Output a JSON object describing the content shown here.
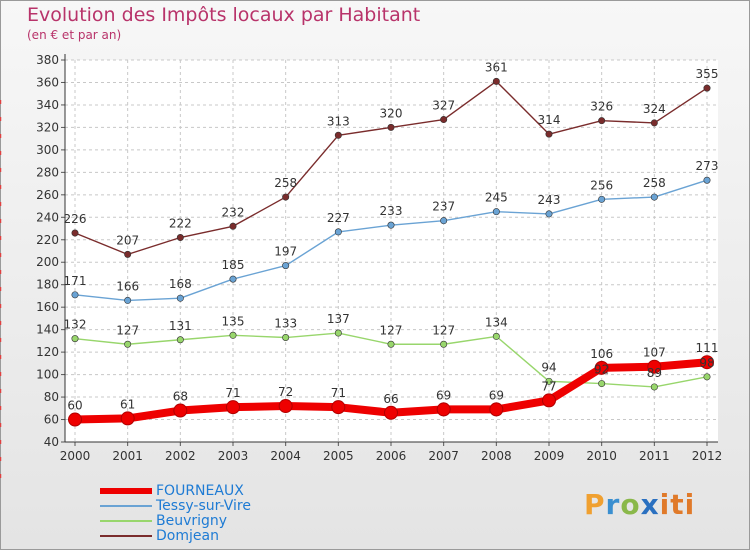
{
  "chart_data": {
    "type": "line",
    "title": "Evolution des Impôts locaux par Habitant",
    "subtitle": "(en € et par an)",
    "xlabel": "",
    "ylabel": "",
    "ylim": [
      40,
      380
    ],
    "yticks": [
      40,
      60,
      80,
      100,
      120,
      140,
      160,
      180,
      200,
      220,
      240,
      260,
      280,
      300,
      320,
      340,
      360,
      380
    ],
    "categories": [
      "2000",
      "2001",
      "2002",
      "2003",
      "2004",
      "2005",
      "2006",
      "2007",
      "2008",
      "2009",
      "2010",
      "2011",
      "2012"
    ],
    "series": [
      {
        "name": "FOURNEAUX",
        "color": "#ee0000",
        "values": [
          60,
          61,
          68,
          71,
          72,
          71,
          66,
          69,
          69,
          77,
          106,
          107,
          111
        ]
      },
      {
        "name": "Tessy-sur-Vire",
        "color": "#6aa3d4",
        "values": [
          171,
          166,
          168,
          185,
          197,
          227,
          233,
          237,
          245,
          243,
          256,
          258,
          273
        ]
      },
      {
        "name": "Beuvrigny",
        "color": "#98d66c",
        "values": [
          132,
          127,
          131,
          135,
          133,
          137,
          127,
          127,
          134,
          94,
          92,
          89,
          98
        ]
      },
      {
        "name": "Domjean",
        "color": "#7a2c2c",
        "values": [
          226,
          207,
          222,
          232,
          258,
          313,
          320,
          327,
          361,
          314,
          326,
          324,
          355
        ]
      }
    ]
  },
  "brand": {
    "p": "P",
    "r": "r",
    "o": "o",
    "x": "x",
    "iti": "iti"
  }
}
